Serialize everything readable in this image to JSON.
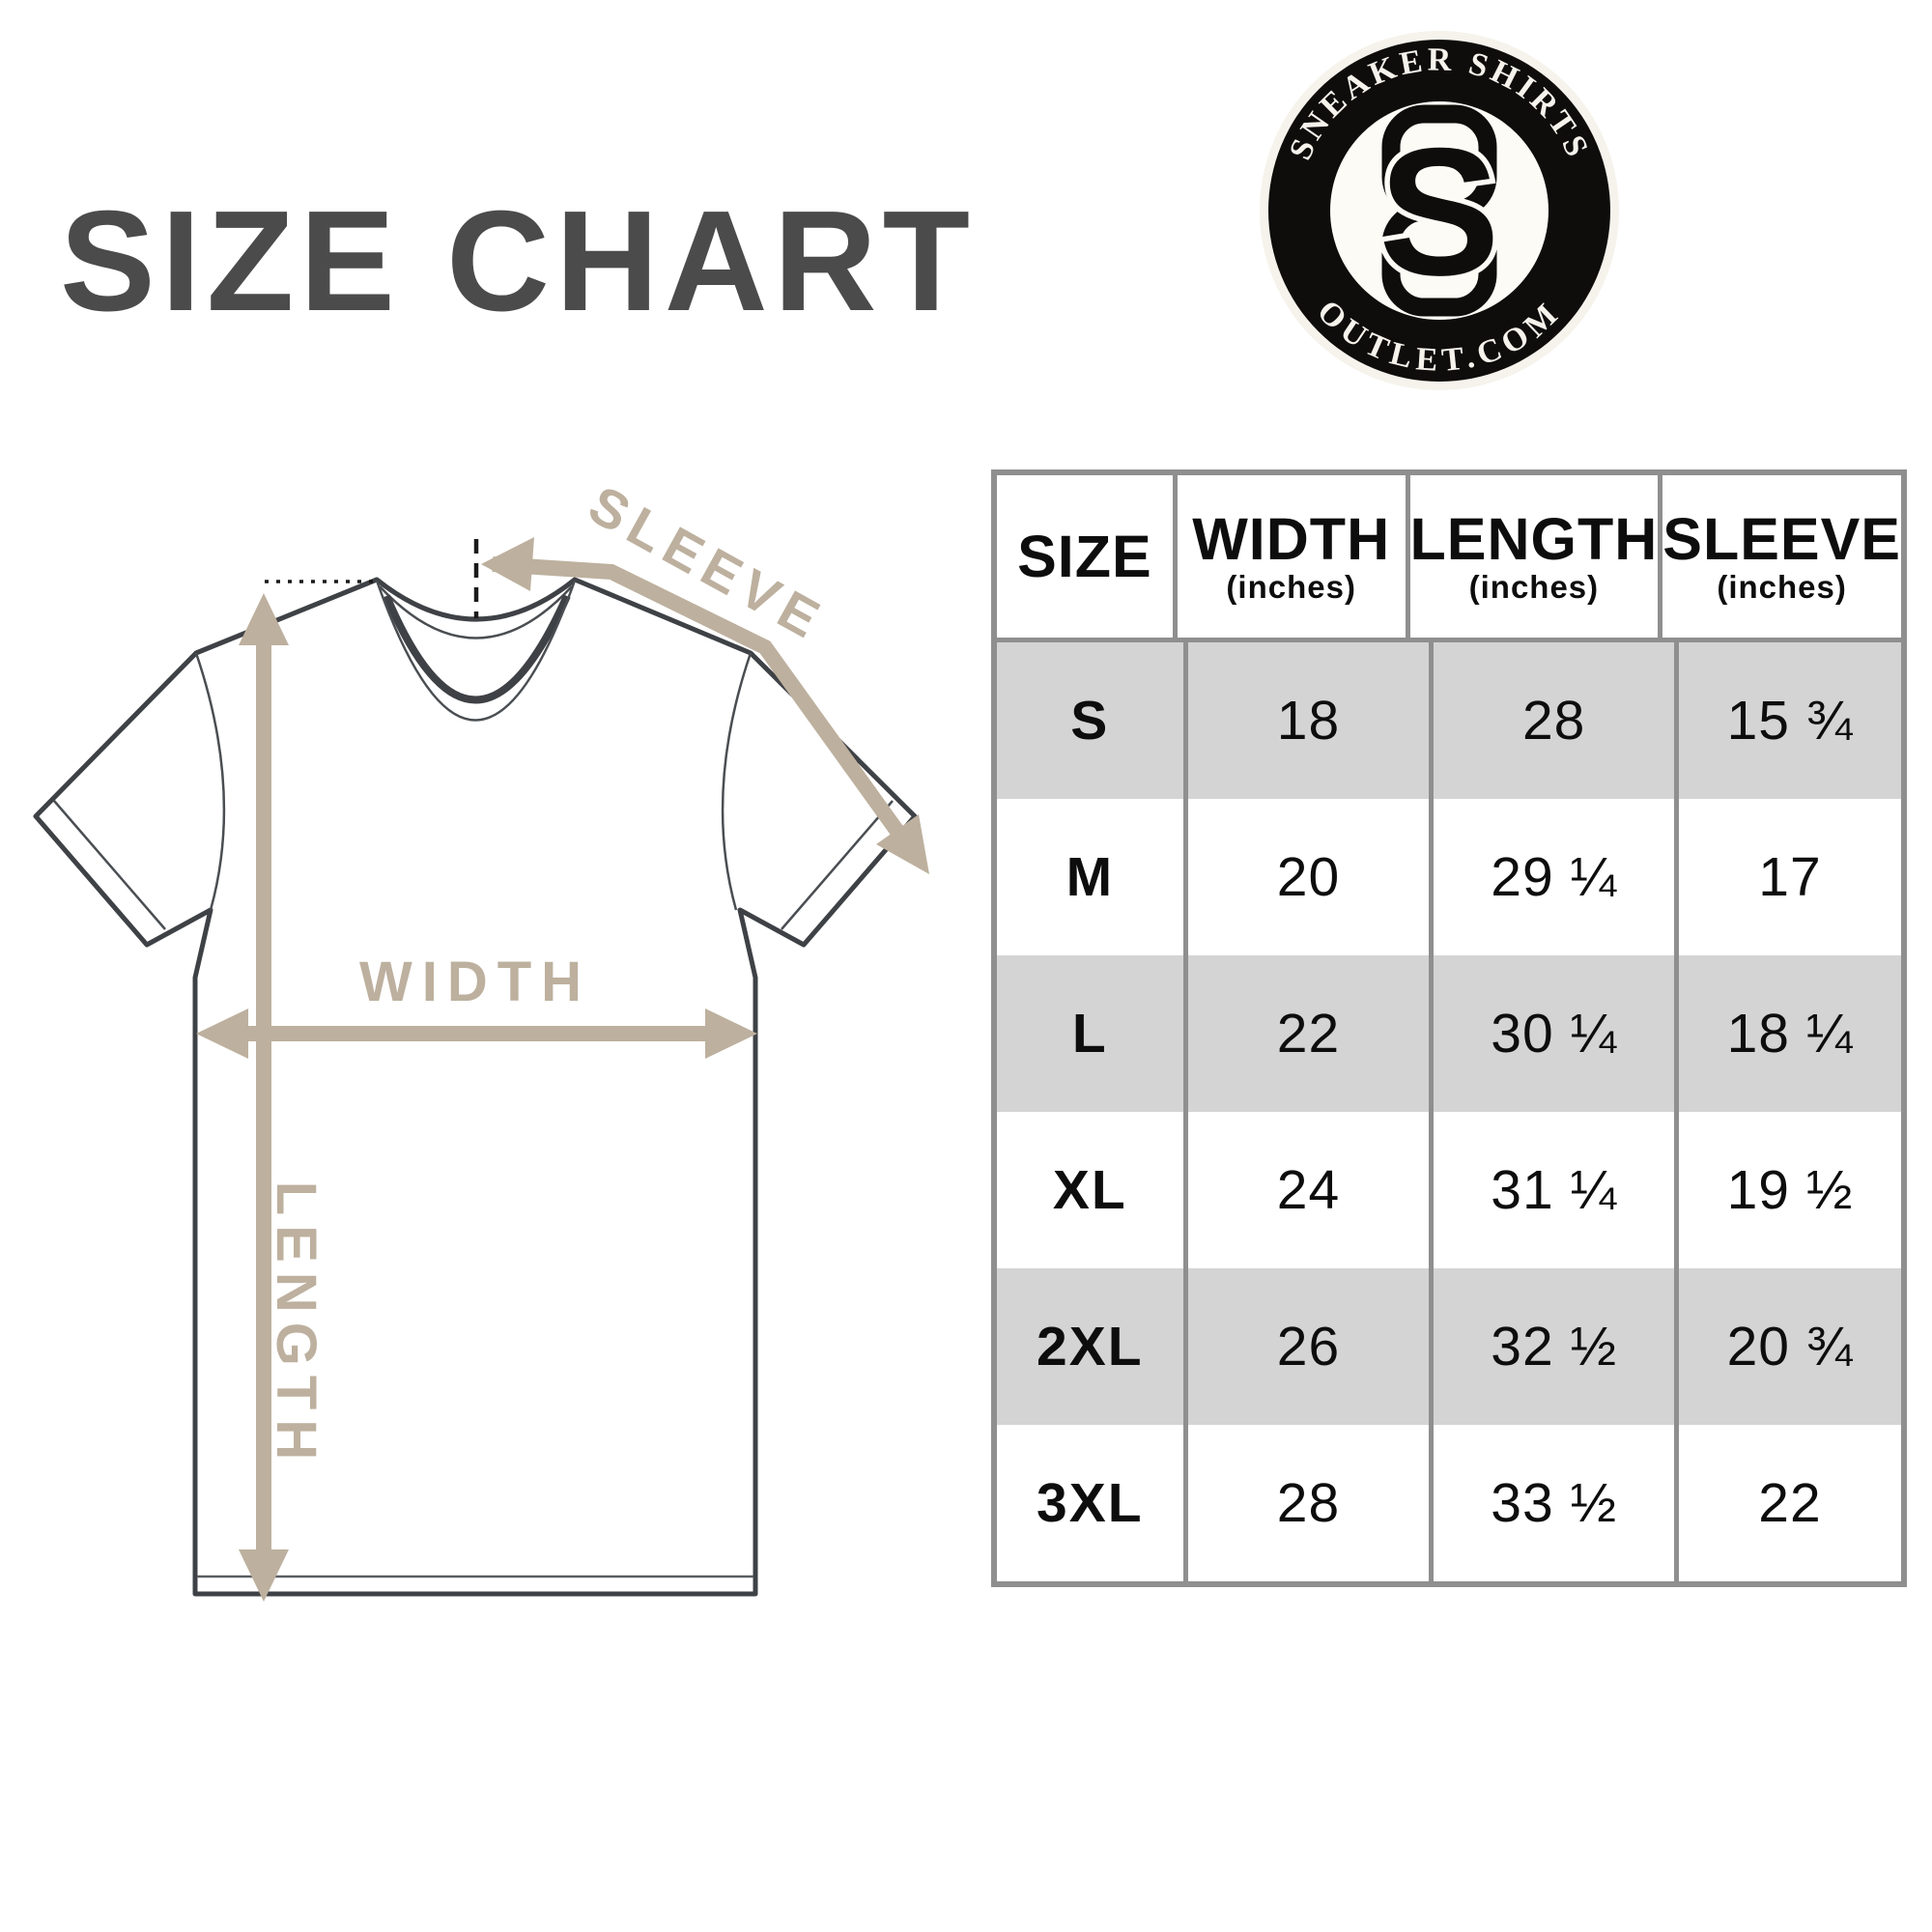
{
  "title": "SIZE CHART",
  "logo": {
    "arc_top": "SNEAKER SHIRTS",
    "arc_bottom": "OUTLET.COM",
    "monogram": "S"
  },
  "diagram": {
    "sleeve_label": "SLEEVE",
    "width_label": "WIDTH",
    "length_label": "LENGTH"
  },
  "table": {
    "headers": [
      {
        "label": "SIZE",
        "sub": ""
      },
      {
        "label": "WIDTH",
        "sub": "(inches)"
      },
      {
        "label": "LENGTH",
        "sub": "(inches)"
      },
      {
        "label": "SLEEVE",
        "sub": "(inches)"
      }
    ],
    "rows": [
      {
        "size": "S",
        "width": "18",
        "length": "28",
        "sleeve": "15 ¾"
      },
      {
        "size": "M",
        "width": "20",
        "length": "29 ¼",
        "sleeve": "17"
      },
      {
        "size": "L",
        "width": "22",
        "length": "30 ¼",
        "sleeve": "18 ¼"
      },
      {
        "size": "XL",
        "width": "24",
        "length": "31 ¼",
        "sleeve": "19 ½"
      },
      {
        "size": "2XL",
        "width": "26",
        "length": "32 ½",
        "sleeve": "20 ¾"
      },
      {
        "size": "3XL",
        "width": "28",
        "length": "33 ½",
        "sleeve": "22"
      }
    ]
  },
  "colors": {
    "accent_tan": "#bdb09e",
    "title_gray": "#4b4b4b",
    "table_border": "#8f8f8f",
    "row_shade": "#d4d4d4",
    "shirt_line": "#3e4145",
    "ink": "#111111"
  }
}
